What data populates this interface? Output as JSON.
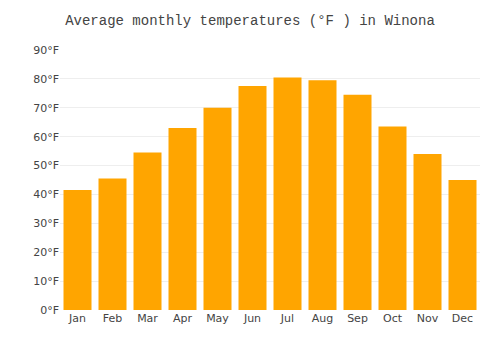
{
  "chart_data": {
    "type": "bar",
    "title": "Average monthly temperatures (°F ) in Winona",
    "categories": [
      "Jan",
      "Feb",
      "Mar",
      "Apr",
      "May",
      "Jun",
      "Jul",
      "Aug",
      "Sep",
      "Oct",
      "Nov",
      "Dec"
    ],
    "values": [
      41.5,
      45.5,
      54.5,
      63,
      70,
      77.5,
      80.5,
      79.5,
      74.5,
      63.5,
      54,
      45
    ],
    "color": "#FFA500",
    "ylim": [
      0,
      90
    ],
    "yticks": [
      {
        "value": 0,
        "label": "0°F"
      },
      {
        "value": 10,
        "label": "10°F"
      },
      {
        "value": 20,
        "label": "20°F"
      },
      {
        "value": 30,
        "label": "30°F"
      },
      {
        "value": 40,
        "label": "40°F"
      },
      {
        "value": 50,
        "label": "50°F"
      },
      {
        "value": 60,
        "label": "60°F"
      },
      {
        "value": 70,
        "label": "70°F"
      },
      {
        "value": 80,
        "label": "80°F"
      },
      {
        "value": 90,
        "label": "90°F"
      }
    ],
    "grid": true
  }
}
